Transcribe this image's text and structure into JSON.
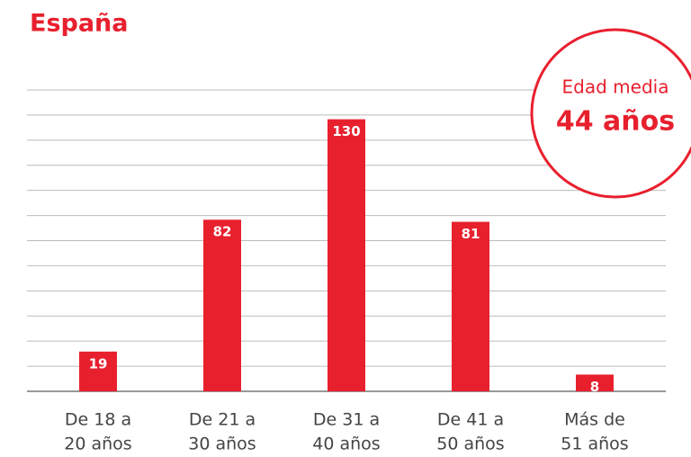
{
  "chart_data": {
    "type": "bar",
    "title": "España",
    "categories": [
      [
        "De 18 a",
        "20 años"
      ],
      [
        "De 21 a",
        "30 años"
      ],
      [
        "De 31 a",
        "40 años"
      ],
      [
        "De 41 a",
        "50 años"
      ],
      [
        "Más de",
        "51 años"
      ]
    ],
    "values": [
      19,
      82,
      130,
      81,
      8
    ],
    "color": "#e8202e",
    "ylim": [
      0,
      144
    ],
    "yticks": [
      0,
      12,
      24,
      36,
      48,
      60,
      72,
      84,
      96,
      108,
      120,
      132,
      144
    ],
    "grid": true,
    "annotation": {
      "label": "Edad media",
      "value": "44 años"
    }
  }
}
